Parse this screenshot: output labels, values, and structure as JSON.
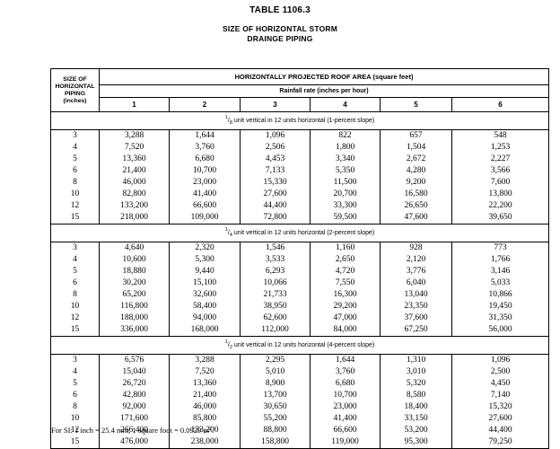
{
  "page": {
    "title": "TABLE 1106.3",
    "subtitle": [
      "SIZE OF HORIZONTAL STORM",
      "DRAINGE PIPING"
    ],
    "footnote": {
      "prefix": "For SI: 1 inch = 25.4 mm, 1 square foot = 0.0929 m",
      "sup": "2",
      "suffix": "."
    }
  },
  "table": {
    "left_header_lines": [
      "SIZE OF",
      "HORIZONTAL",
      "PIPING",
      "(inches)"
    ],
    "span_header": "HORIZONTALLY PROJECTED ROOF AREA (square feet)",
    "sub_header": "Rainfall rate (inches per hour)",
    "rate_columns": [
      "1",
      "2",
      "3",
      "4",
      "5",
      "6"
    ],
    "sections": [
      {
        "slope": {
          "numerator": "1",
          "denominator": "8",
          "text": " unit vertical in 12 units horizontal (1-percent slope)"
        },
        "rows": [
          {
            "size": "3",
            "values": [
              "3,288",
              "1,644",
              "1,096",
              "822",
              "657",
              "548"
            ]
          },
          {
            "size": "4",
            "values": [
              "7,520",
              "3,760",
              "2,506",
              "1,800",
              "1,504",
              "1,253"
            ]
          },
          {
            "size": "5",
            "values": [
              "13,360",
              "6,680",
              "4,453",
              "3,340",
              "2,672",
              "2,227"
            ]
          },
          {
            "size": "6",
            "values": [
              "21,400",
              "10,700",
              "7,133",
              "5,350",
              "4,280",
              "3,566"
            ]
          },
          {
            "size": "8",
            "values": [
              "46,000",
              "23,000",
              "15,330",
              "11,500",
              "9,200",
              "7,600"
            ]
          },
          {
            "size": "10",
            "values": [
              "82,800",
              "41,400",
              "27,600",
              "20,700",
              "16,580",
              "13,800"
            ]
          },
          {
            "size": "12",
            "values": [
              "133,200",
              "66,600",
              "44,400",
              "33,300",
              "26,650",
              "22,200"
            ]
          },
          {
            "size": "15",
            "values": [
              "218,000",
              "109,000",
              "72,800",
              "59,500",
              "47,600",
              "39,650"
            ]
          }
        ]
      },
      {
        "slope": {
          "numerator": "1",
          "denominator": "4",
          "text": " unit vertical in 12 units horizontal (2-percent slope)"
        },
        "rows": [
          {
            "size": "3",
            "values": [
              "4,640",
              "2,320",
              "1,546",
              "1,160",
              "928",
              "773"
            ]
          },
          {
            "size": "4",
            "values": [
              "10,600",
              "5,300",
              "3,533",
              "2,650",
              "2,120",
              "1,766"
            ]
          },
          {
            "size": "5",
            "values": [
              "18,880",
              "9,440",
              "6,293",
              "4,720",
              "3,776",
              "3,146"
            ]
          },
          {
            "size": "6",
            "values": [
              "30,200",
              "15,100",
              "10,066",
              "7,550",
              "6,040",
              "5,033"
            ]
          },
          {
            "size": "8",
            "values": [
              "65,200",
              "32,600",
              "21,733",
              "16,300",
              "13,040",
              "10,866"
            ]
          },
          {
            "size": "10",
            "values": [
              "116,800",
              "58,400",
              "38,950",
              "29,200",
              "23,350",
              "19,450"
            ]
          },
          {
            "size": "12",
            "values": [
              "188,000",
              "94,000",
              "62,600",
              "47,000",
              "37,600",
              "31,350"
            ]
          },
          {
            "size": "15",
            "values": [
              "336,000",
              "168,000",
              "112,000",
              "84,000",
              "67,250",
              "56,000"
            ]
          }
        ]
      },
      {
        "slope": {
          "numerator": "1",
          "denominator": "2",
          "text": " unit vertical in 12 units horizontal (4-percent slope)"
        },
        "rows": [
          {
            "size": "3",
            "values": [
              "6,576",
              "3,288",
              "2,295",
              "1,644",
              "1,310",
              "1,096"
            ]
          },
          {
            "size": "4",
            "values": [
              "15,040",
              "7,520",
              "5,010",
              "3,760",
              "3,010",
              "2,500"
            ]
          },
          {
            "size": "5",
            "values": [
              "26,720",
              "13,360",
              "8,900",
              "6,680",
              "5,320",
              "4,450"
            ]
          },
          {
            "size": "6",
            "values": [
              "42,800",
              "21,400",
              "13,700",
              "10,700",
              "8,580",
              "7,140"
            ]
          },
          {
            "size": "8",
            "values": [
              "92,000",
              "46,000",
              "30,650",
              "23,000",
              "18,400",
              "15,320"
            ]
          },
          {
            "size": "10",
            "values": [
              "171,600",
              "85,800",
              "55,200",
              "41,400",
              "33,150",
              "27,600"
            ]
          },
          {
            "size": "12",
            "values": [
              "266,400",
              "133,200",
              "88,800",
              "66,600",
              "53,200",
              "44,400"
            ]
          },
          {
            "size": "15",
            "values": [
              "476,000",
              "238,000",
              "158,800",
              "119,000",
              "95,300",
              "79,250"
            ]
          }
        ]
      }
    ]
  }
}
